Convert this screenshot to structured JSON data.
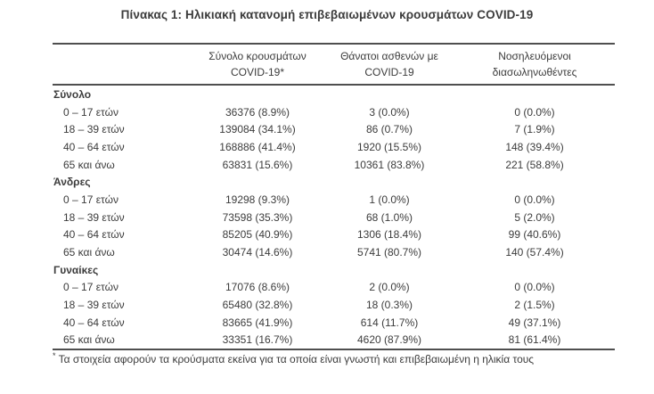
{
  "title": "Πίνακας 1: Ηλικιακή κατανομή επιβεβαιωμένων κρουσμάτων COVID-19",
  "colors": {
    "background": "#ffffff",
    "text": "#3c3c3c",
    "border": "#4f4f4f"
  },
  "table": {
    "columns": [
      {
        "line1": "Σύνολο κρουσμάτων",
        "line2": "COVID-19*"
      },
      {
        "line1": "Θάνατοι ασθενών με",
        "line2": "COVID-19"
      },
      {
        "line1": "Νοσηλευόμενοι",
        "line2": "διασωληνωθέντες"
      }
    ],
    "sections": [
      {
        "label": "Σύνολο",
        "rows": [
          {
            "age": "0 – 17 ετών",
            "cases": "36376 (8.9%)",
            "deaths": "3 (0.0%)",
            "intubated": "0 (0.0%)"
          },
          {
            "age": "18 – 39 ετών",
            "cases": "139084 (34.1%)",
            "deaths": "86 (0.7%)",
            "intubated": "7 (1.9%)"
          },
          {
            "age": "40 – 64 ετών",
            "cases": "168886 (41.4%)",
            "deaths": "1920 (15.5%)",
            "intubated": "148 (39.4%)"
          },
          {
            "age": "65 και άνω",
            "cases": "63831 (15.6%)",
            "deaths": "10361 (83.8%)",
            "intubated": "221 (58.8%)"
          }
        ]
      },
      {
        "label": "Άνδρες",
        "rows": [
          {
            "age": "0 – 17 ετών",
            "cases": "19298 (9.3%)",
            "deaths": "1 (0.0%)",
            "intubated": "0 (0.0%)"
          },
          {
            "age": "18 – 39 ετών",
            "cases": "73598 (35.3%)",
            "deaths": "68 (1.0%)",
            "intubated": "5 (2.0%)"
          },
          {
            "age": "40 – 64 ετών",
            "cases": "85205 (40.9%)",
            "deaths": "1306 (18.4%)",
            "intubated": "99 (40.6%)"
          },
          {
            "age": "65 και άνω",
            "cases": "30474 (14.6%)",
            "deaths": "5741 (80.7%)",
            "intubated": "140 (57.4%)"
          }
        ]
      },
      {
        "label": "Γυναίκες",
        "rows": [
          {
            "age": "0 – 17 ετών",
            "cases": "17076 (8.6%)",
            "deaths": "2 (0.0%)",
            "intubated": "0 (0.0%)"
          },
          {
            "age": "18 – 39 ετών",
            "cases": "65480 (32.8%)",
            "deaths": "18 (0.3%)",
            "intubated": "2 (1.5%)"
          },
          {
            "age": "40 – 64 ετών",
            "cases": "83665 (41.9%)",
            "deaths": "614 (11.7%)",
            "intubated": "49 (37.1%)"
          },
          {
            "age": "65 και άνω",
            "cases": "33351 (16.7%)",
            "deaths": "4620 (87.9%)",
            "intubated": "81 (61.4%)"
          }
        ]
      }
    ]
  },
  "footnote": {
    "marker": "*",
    "text": " Τα στοιχεία αφορούν τα κρούσματα εκείνα για τα οποία είναι γνωστή και επιβεβαιωμένη η ηλικία τους"
  }
}
